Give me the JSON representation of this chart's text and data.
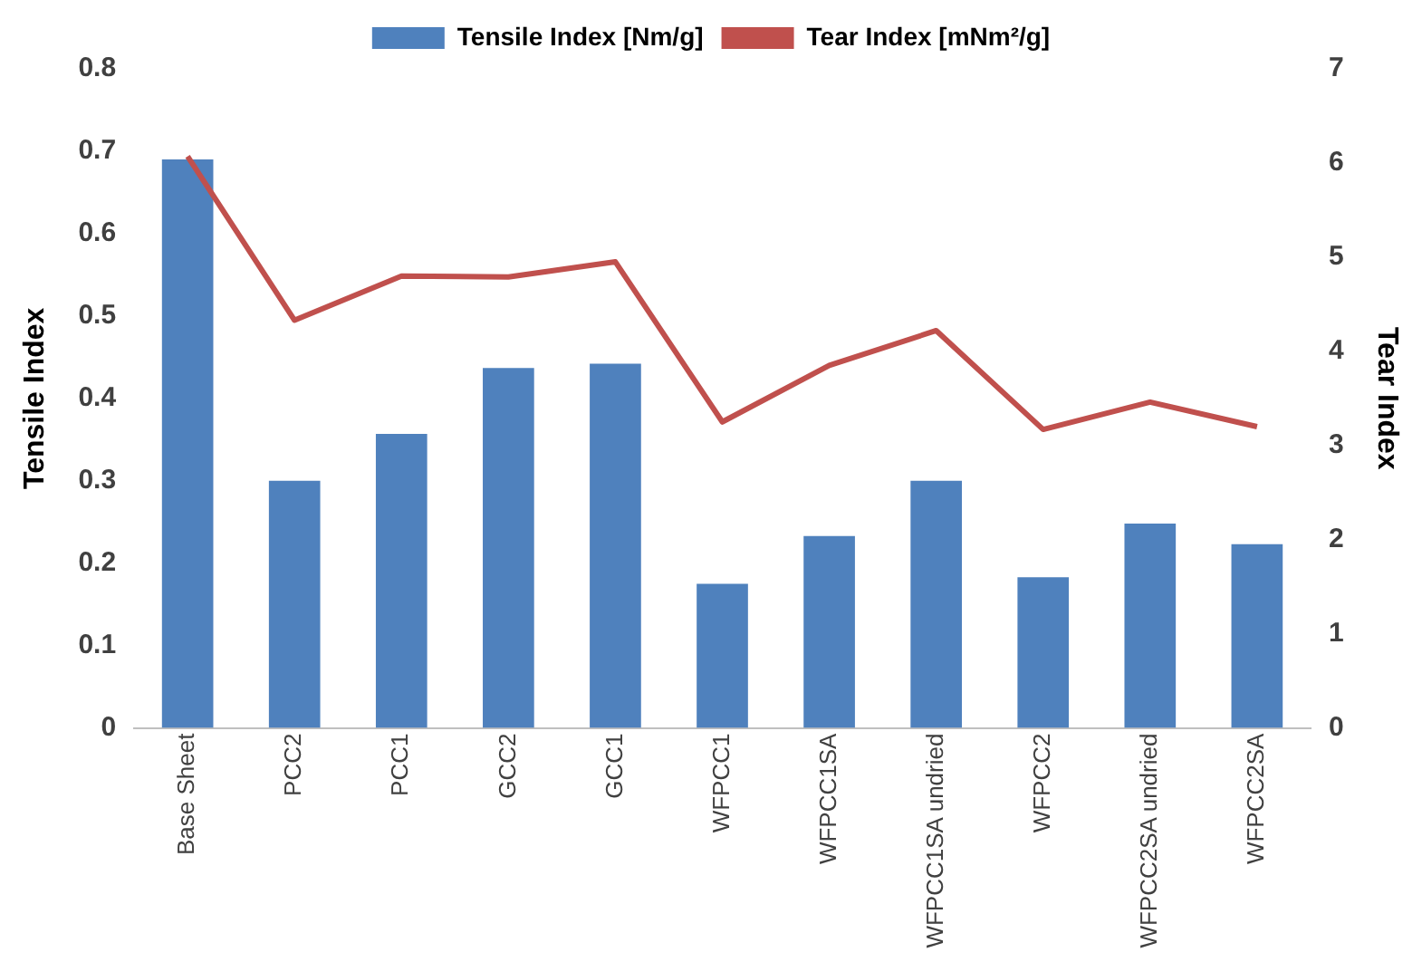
{
  "chart_data": {
    "type": "bar",
    "ylabel": "Tensile Index",
    "y2label": "Tear Index",
    "categories": [
      "Base Sheet",
      "PCC2",
      "PCC1",
      "GCC2",
      "GCC1",
      "WFPCC1",
      "WFPCC1SA",
      "WFPCC1SA undried",
      "WFPCC2",
      "WFPCC2SA undried",
      "WFPCC2SA"
    ],
    "series": [
      {
        "name": "Tensile Index [Nm/g]",
        "color": "#4f81bd",
        "values": [
          0.69,
          0.3,
          0.357,
          0.437,
          0.442,
          0.175,
          0.233,
          0.3,
          0.183,
          0.248,
          0.223
        ]
      },
      {
        "name": "Tear Index [mNm²/g]",
        "type": "line",
        "axis": "y2",
        "color": "#c0504d",
        "values": [
          6.07,
          4.33,
          4.8,
          4.79,
          4.95,
          3.25,
          3.85,
          4.22,
          3.17,
          3.46,
          3.2
        ]
      }
    ],
    "ylim": [
      0,
      0.8
    ],
    "yticks": [
      0,
      0.1,
      0.2,
      0.3,
      0.4,
      0.5,
      0.6,
      0.7,
      0.8
    ],
    "y2lim": [
      0,
      7
    ],
    "y2ticks": [
      0,
      1,
      2,
      3,
      4,
      5,
      6,
      7
    ],
    "grid": false,
    "legend": "top",
    "marker": "none"
  }
}
